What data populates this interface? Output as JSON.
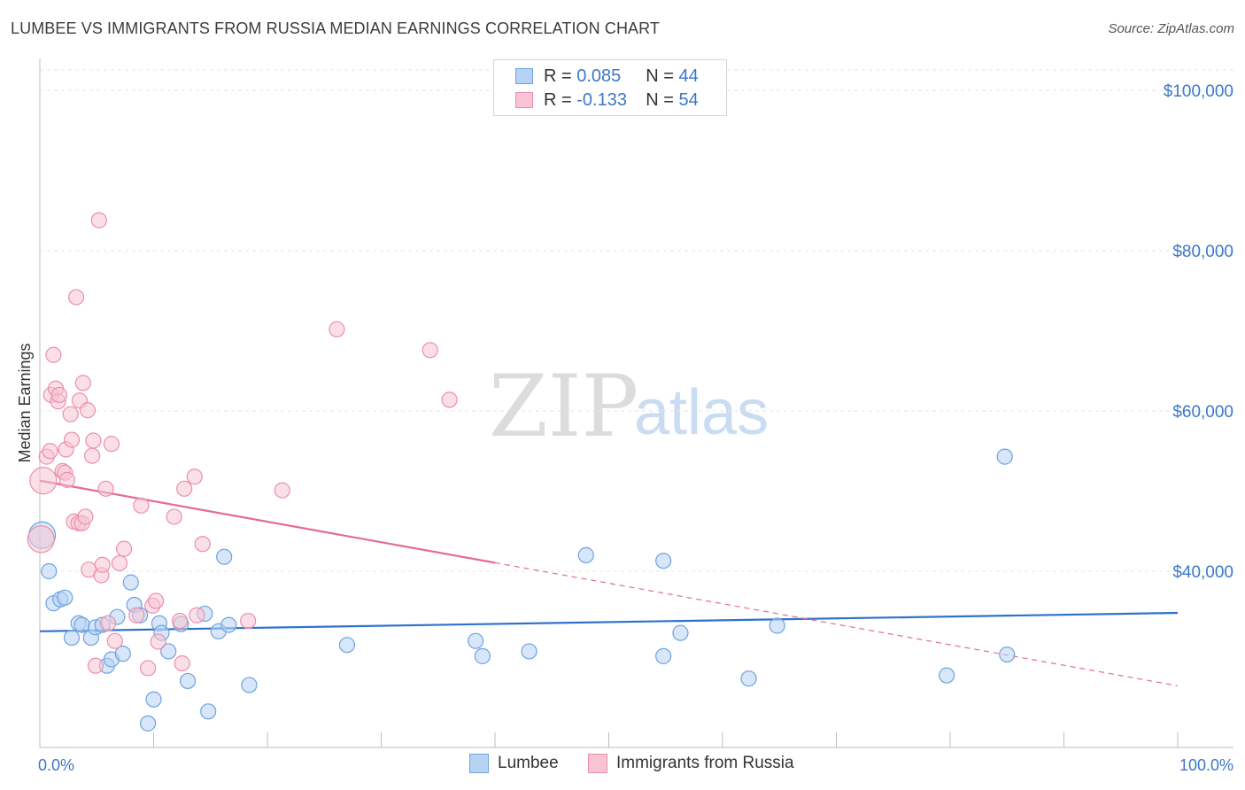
{
  "header": {
    "title": "LUMBEE VS IMMIGRANTS FROM RUSSIA MEDIAN EARNINGS CORRELATION CHART",
    "source": "Source: ZipAtlas.com"
  },
  "watermark": {
    "zip": "ZIP",
    "atlas": "atlas"
  },
  "legend": {
    "r_label": "R =",
    "n_label": "N =",
    "series": [
      {
        "r": "0.085",
        "n": "44"
      },
      {
        "r": "-0.133",
        "n": "54"
      }
    ]
  },
  "colors": {
    "lumbee_fill": "#b7d2f3",
    "lumbee_stroke": "#6ea3e0",
    "lumbee_line": "#2f72cc",
    "russia_fill": "#f8c4d4",
    "russia_stroke": "#eb8fab",
    "russia_line": "#e36b96",
    "axis_text": "#3a78c9"
  },
  "chart_data": {
    "type": "scatter",
    "title": "LUMBEE VS IMMIGRANTS FROM RUSSIA MEDIAN EARNINGS CORRELATION CHART",
    "xlabel": "",
    "ylabel": "Median Earnings",
    "xlim": [
      0,
      100
    ],
    "ylim": [
      18000,
      104000
    ],
    "x_tick_labels": [
      "0.0%",
      "100.0%"
    ],
    "y_ticks": [
      {
        "value": 40000,
        "label": "$40,000"
      },
      {
        "value": 60000,
        "label": "$60,000"
      },
      {
        "value": 80000,
        "label": "$80,000"
      },
      {
        "value": 100000,
        "label": "$100,000"
      }
    ],
    "series": [
      {
        "name": "Lumbee",
        "r": 0.085,
        "n": 44,
        "trend": {
          "x0": 0,
          "y0": 32500,
          "x1": 100,
          "y1": 34800,
          "dashed_from": null
        },
        "points": [
          [
            0.2,
            44500
          ],
          [
            0.8,
            40000
          ],
          [
            1.2,
            36000
          ],
          [
            1.8,
            36500
          ],
          [
            2.2,
            36700
          ],
          [
            2.8,
            31700
          ],
          [
            3.4,
            33500
          ],
          [
            3.7,
            33300
          ],
          [
            4.5,
            31700
          ],
          [
            4.9,
            33000
          ],
          [
            5.5,
            33300
          ],
          [
            5.9,
            28200
          ],
          [
            6.3,
            29000
          ],
          [
            6.8,
            34300
          ],
          [
            7.3,
            29700
          ],
          [
            8.0,
            38600
          ],
          [
            8.3,
            35800
          ],
          [
            8.8,
            34500
          ],
          [
            9.5,
            21000
          ],
          [
            10.0,
            24000
          ],
          [
            10.5,
            33500
          ],
          [
            10.7,
            32300
          ],
          [
            11.3,
            30000
          ],
          [
            12.4,
            33400
          ],
          [
            13.0,
            26300
          ],
          [
            14.5,
            34700
          ],
          [
            14.8,
            22500
          ],
          [
            15.7,
            32500
          ],
          [
            16.2,
            41800
          ],
          [
            16.6,
            33300
          ],
          [
            18.4,
            25800
          ],
          [
            27.0,
            30800
          ],
          [
            38.3,
            31300
          ],
          [
            38.9,
            29400
          ],
          [
            43.0,
            30000
          ],
          [
            48.0,
            42000
          ],
          [
            54.8,
            41300
          ],
          [
            54.8,
            29400
          ],
          [
            56.3,
            32300
          ],
          [
            64.8,
            33200
          ],
          [
            62.3,
            26600
          ],
          [
            79.7,
            27000
          ],
          [
            84.8,
            54300
          ],
          [
            85.0,
            29600
          ]
        ]
      },
      {
        "name": "Immigrants from Russia",
        "r": -0.133,
        "n": 54,
        "trend": {
          "x0": 0,
          "y0": 51300,
          "x1": 100,
          "y1": 25700,
          "dashed_from": 40
        },
        "points": [
          [
            0.1,
            44000
          ],
          [
            0.3,
            51300
          ],
          [
            0.6,
            54300
          ],
          [
            0.9,
            55000
          ],
          [
            1.0,
            62000
          ],
          [
            1.2,
            67000
          ],
          [
            1.4,
            62800
          ],
          [
            1.6,
            61200
          ],
          [
            1.7,
            62000
          ],
          [
            2.0,
            52500
          ],
          [
            2.2,
            52300
          ],
          [
            2.3,
            55200
          ],
          [
            2.4,
            51400
          ],
          [
            2.7,
            59600
          ],
          [
            2.8,
            56400
          ],
          [
            3.0,
            46200
          ],
          [
            3.2,
            74200
          ],
          [
            3.4,
            46000
          ],
          [
            3.5,
            61300
          ],
          [
            3.7,
            46000
          ],
          [
            3.8,
            63500
          ],
          [
            4.0,
            46800
          ],
          [
            4.2,
            60100
          ],
          [
            4.3,
            40200
          ],
          [
            4.6,
            54400
          ],
          [
            4.7,
            56300
          ],
          [
            4.9,
            28200
          ],
          [
            5.2,
            83800
          ],
          [
            5.4,
            39500
          ],
          [
            5.5,
            40800
          ],
          [
            5.8,
            50300
          ],
          [
            6.0,
            33500
          ],
          [
            6.3,
            55900
          ],
          [
            6.6,
            31300
          ],
          [
            7.0,
            41000
          ],
          [
            7.4,
            42800
          ],
          [
            8.5,
            34500
          ],
          [
            8.9,
            48200
          ],
          [
            9.5,
            27900
          ],
          [
            9.9,
            35700
          ],
          [
            10.2,
            36300
          ],
          [
            10.4,
            31200
          ],
          [
            11.8,
            46800
          ],
          [
            12.3,
            33800
          ],
          [
            12.5,
            28500
          ],
          [
            12.7,
            50300
          ],
          [
            13.6,
            51800
          ],
          [
            13.8,
            34500
          ],
          [
            14.3,
            43400
          ],
          [
            18.3,
            33800
          ],
          [
            21.3,
            50100
          ],
          [
            26.1,
            70200
          ],
          [
            34.3,
            67600
          ],
          [
            36.0,
            61400
          ]
        ]
      }
    ]
  },
  "bottom_legend": {
    "items": [
      "Lumbee",
      "Immigrants from Russia"
    ]
  }
}
